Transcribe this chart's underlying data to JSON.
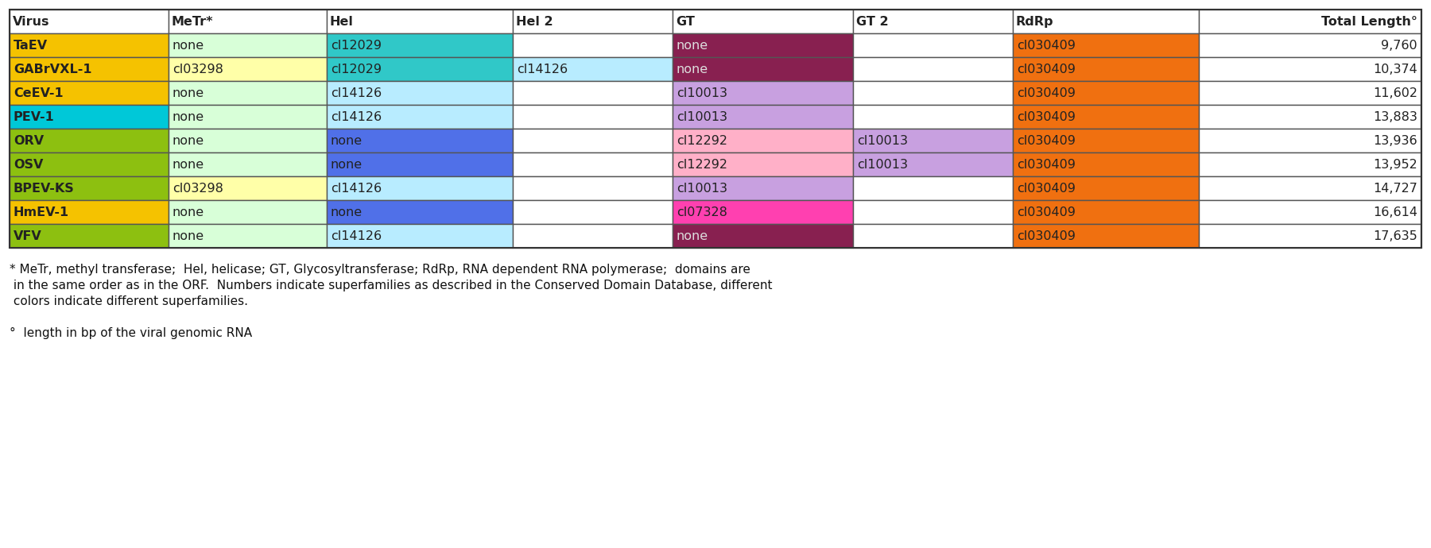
{
  "headers": [
    "Virus",
    "MeTr*",
    "Hel",
    "Hel 2",
    "GT",
    "GT 2",
    "RdRp",
    "Total Length°"
  ],
  "rows": [
    [
      "TaEV",
      "none",
      "cl12029",
      "",
      "none",
      "",
      "cl030409",
      "9,760"
    ],
    [
      "GABrVXL-1",
      "cl03298",
      "cl12029",
      "cl14126",
      "none",
      "",
      "cl030409",
      "10,374"
    ],
    [
      "CeEV-1",
      "none",
      "cl14126",
      "",
      "cl10013",
      "",
      "cl030409",
      "11,602"
    ],
    [
      "PEV-1",
      "none",
      "cl14126",
      "",
      "cl10013",
      "",
      "cl030409",
      "13,883"
    ],
    [
      "ORV",
      "none",
      "none",
      "",
      "cl12292",
      "cl10013",
      "cl030409",
      "13,936"
    ],
    [
      "OSV",
      "none",
      "none",
      "",
      "cl12292",
      "cl10013",
      "cl030409",
      "13,952"
    ],
    [
      "BPEV-KS",
      "cl03298",
      "cl14126",
      "",
      "cl10013",
      "",
      "cl030409",
      "14,727"
    ],
    [
      "HmEV-1",
      "none",
      "none",
      "",
      "cl07328",
      "",
      "cl030409",
      "16,614"
    ],
    [
      "VFV",
      "none",
      "cl14126",
      "",
      "none",
      "",
      "cl030409",
      "17,635"
    ]
  ],
  "virus_colors": {
    "TaEV": "#F5C200",
    "GABrVXL-1": "#F5C200",
    "CeEV-1": "#F5C200",
    "PEV-1": "#00C8D8",
    "ORV": "#8DC010",
    "OSV": "#8DC010",
    "BPEV-KS": "#8DC010",
    "HmEV-1": "#F5C200",
    "VFV": "#8DC010"
  },
  "MeTr_colors": {
    "none": "#D8FFD8",
    "cl03298": "#FFFFA8"
  },
  "Hel_colors": {
    "cl12029": "#30C8C8",
    "cl14126": "#B8ECFF",
    "none": "#5070E8"
  },
  "Hel2_colors": {
    "cl14126": "#B8ECFF",
    "": "#FFFFFF"
  },
  "GT_colors": {
    "none": "#882050",
    "cl10013": "#C8A0E0",
    "cl12292": "#FFB0C8",
    "cl07328": "#FF40B0"
  },
  "GT2_colors": {
    "cl10013": "#C8A0E0",
    "": "#FFFFFF"
  },
  "RdRp_colors": {
    "cl030409": "#F07010"
  },
  "footnote_lines": [
    "* MeTr, methyl transferase;  Hel, helicase; GT, Glycosyltransferase; RdRp, RNA dependent RNA polymerase;  domains are",
    " in the same order as in the ORF.  Numbers indicate superfamilies as described in the Conserved Domain Database, different",
    " colors indicate different superfamilies.",
    "",
    "°  length in bp of the viral genomic RNA"
  ],
  "border_color": "#555555",
  "text_color": "#222222",
  "fig_width": 18.0,
  "fig_height": 6.9
}
